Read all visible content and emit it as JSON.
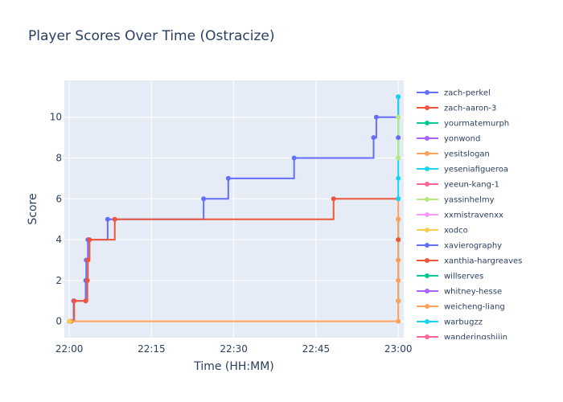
{
  "chart_data": {
    "type": "line",
    "line_shape": "step",
    "title": "Player Scores Over Time (Ostracize)",
    "xlabel": "Time (HH:MM)",
    "ylabel": "Score",
    "x_ticks": [
      "22:00",
      "22:15",
      "22:30",
      "22:45",
      "23:00"
    ],
    "x_tick_minutes": [
      0,
      15,
      30,
      45,
      60
    ],
    "xlim_minutes": [
      -0.9,
      61
    ],
    "y_ticks": [
      0,
      2,
      4,
      6,
      8,
      10
    ],
    "ylim": [
      -0.8,
      11.8
    ],
    "grid": true,
    "legend_position": "right",
    "plot_background": "#e5ecf6",
    "series": [
      {
        "name": "zach-perkel",
        "color": "#636efa",
        "points": [
          [
            0.2,
            0
          ],
          [
            0.8,
            1
          ],
          [
            3.0,
            1
          ],
          [
            3.0,
            2
          ],
          [
            3.1,
            3
          ],
          [
            3.4,
            4
          ],
          [
            7.0,
            5
          ],
          [
            24.5,
            6
          ],
          [
            29.0,
            7
          ],
          [
            41.0,
            8
          ],
          [
            55.5,
            9
          ],
          [
            56.0,
            10
          ],
          [
            60.0,
            11
          ]
        ]
      },
      {
        "name": "zach-aaron-3",
        "color": "#EF553B",
        "points": [
          [
            0.3,
            0
          ],
          [
            0.9,
            1
          ],
          [
            3.0,
            1
          ],
          [
            3.3,
            2
          ],
          [
            3.4,
            3
          ],
          [
            3.7,
            4
          ],
          [
            8.3,
            5
          ],
          [
            48.2,
            6
          ],
          [
            60.0,
            6
          ]
        ]
      },
      {
        "name": "yourmatemurph",
        "color": "#00cc96",
        "points": [
          [
            60.0,
            1
          ],
          [
            60.0,
            5
          ]
        ]
      },
      {
        "name": "yonwond",
        "color": "#ab63fa",
        "points": []
      },
      {
        "name": "yesitslogan",
        "color": "#FFA15A",
        "points": [
          [
            0.0,
            0
          ],
          [
            60.0,
            0
          ],
          [
            60.0,
            1
          ],
          [
            60.0,
            2
          ],
          [
            60.0,
            3
          ],
          [
            60.0,
            4
          ],
          [
            60.0,
            5
          ],
          [
            60.0,
            6
          ]
        ]
      },
      {
        "name": "yeseniafigueroa",
        "color": "#19d3f3",
        "points": [
          [
            60.0,
            6
          ],
          [
            60.0,
            7
          ],
          [
            60.0,
            11
          ]
        ]
      },
      {
        "name": "yeeun-kang-1",
        "color": "#FF6692",
        "points": []
      },
      {
        "name": "yassinhelmy",
        "color": "#B6E880",
        "points": [
          [
            60.0,
            8
          ],
          [
            60.0,
            10
          ]
        ]
      },
      {
        "name": "xxmistravenxx",
        "color": "#FF97FF",
        "points": []
      },
      {
        "name": "xodco",
        "color": "#FECB52",
        "points": [
          [
            0.1,
            0
          ]
        ]
      },
      {
        "name": "xavierography",
        "color": "#636efa",
        "points": [
          [
            60.0,
            9
          ]
        ]
      },
      {
        "name": "xanthia-hargreaves",
        "color": "#EF553B",
        "points": [
          [
            60.0,
            4
          ]
        ]
      },
      {
        "name": "willserves",
        "color": "#00cc96",
        "points": []
      },
      {
        "name": "whitney-hesse",
        "color": "#ab63fa",
        "points": []
      },
      {
        "name": "weicheng-liang",
        "color": "#FFA15A",
        "points": [
          [
            60.0,
            2
          ],
          [
            60.0,
            3
          ]
        ]
      },
      {
        "name": "warbugzz",
        "color": "#19d3f3",
        "points": []
      },
      {
        "name": "wanderingshijin",
        "color": "#FF6692",
        "points": []
      }
    ]
  }
}
